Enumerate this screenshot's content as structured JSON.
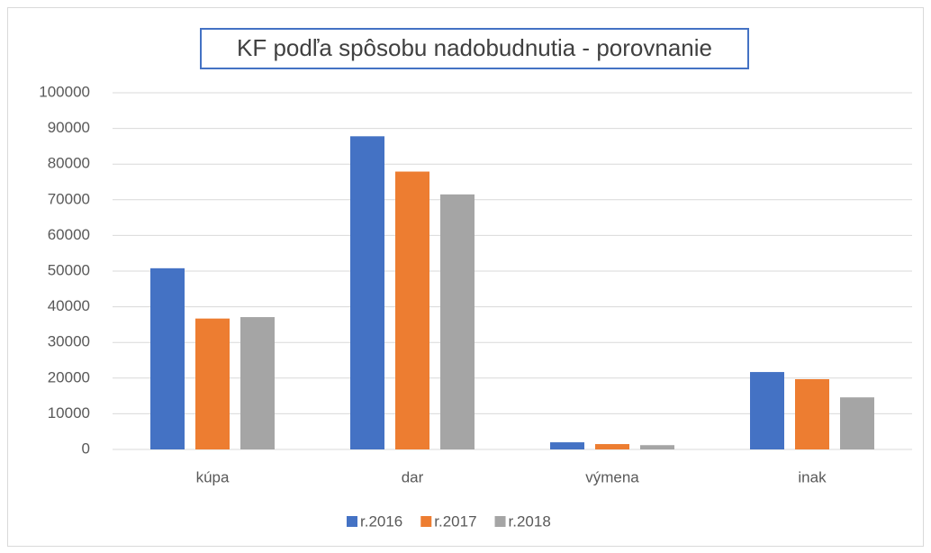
{
  "chart_data": {
    "type": "bar",
    "title": "KF podľa spôsobu nadobudnutia - porovnanie",
    "categories": [
      "kúpa",
      "dar",
      "výmena",
      "inak"
    ],
    "series": [
      {
        "name": "r.2016",
        "color": "#4472c4",
        "values": [
          50800,
          87800,
          2000,
          21700
        ]
      },
      {
        "name": "r.2017",
        "color": "#ed7d31",
        "values": [
          36700,
          77900,
          1500,
          19700
        ]
      },
      {
        "name": "r.2018",
        "color": "#a5a5a5",
        "values": [
          37100,
          71500,
          1200,
          14600
        ]
      }
    ],
    "ylim": [
      0,
      100000
    ],
    "yticks": [
      0,
      10000,
      20000,
      30000,
      40000,
      50000,
      60000,
      70000,
      80000,
      90000,
      100000
    ],
    "grid": true,
    "legend": "bottom"
  }
}
